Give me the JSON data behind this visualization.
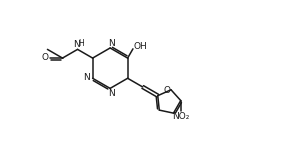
{
  "bg_color": "#ffffff",
  "line_color": "#1a1a1a",
  "line_width": 1.1,
  "figsize": [
    2.82,
    1.56
  ],
  "dpi": 100,
  "xlim": [
    0,
    10
  ],
  "ylim": [
    0,
    5.5
  ]
}
